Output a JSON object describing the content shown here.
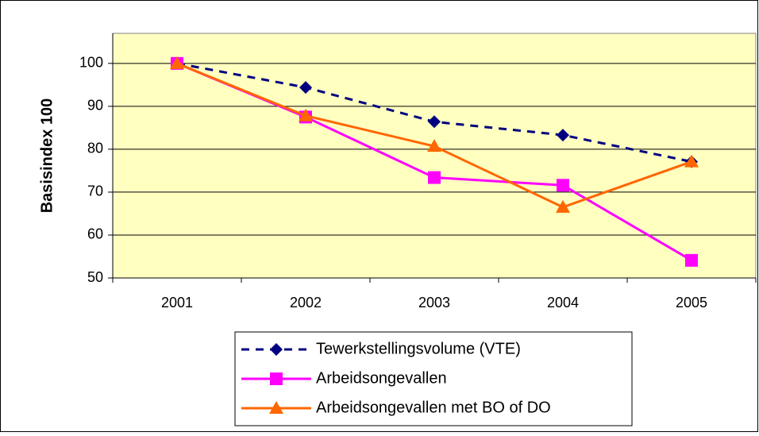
{
  "chart_data": {
    "type": "line",
    "y_label": "Basisindex 100",
    "categories": [
      "2001",
      "2002",
      "2003",
      "2004",
      "2005"
    ],
    "series": [
      {
        "name": "Tewerkstellingsvolume (VTE)",
        "color": "#000080",
        "marker": "diamond",
        "dash": true,
        "values": [
          100,
          94.4,
          86.4,
          83.3,
          77.1
        ]
      },
      {
        "name": "Arbeidsongevallen",
        "color": "#ff00ff",
        "marker": "square",
        "dash": false,
        "values": [
          100,
          87.5,
          73.4,
          71.6,
          54.1
        ]
      },
      {
        "name": "Arbeidsongevallen met BO of DO",
        "color": "#ff6600",
        "marker": "triangle",
        "dash": false,
        "values": [
          100,
          87.8,
          80.7,
          66.5,
          77.1
        ]
      }
    ],
    "ylim": [
      50,
      107
    ],
    "yticks": [
      50,
      60,
      70,
      80,
      90,
      100
    ],
    "grid": true
  }
}
